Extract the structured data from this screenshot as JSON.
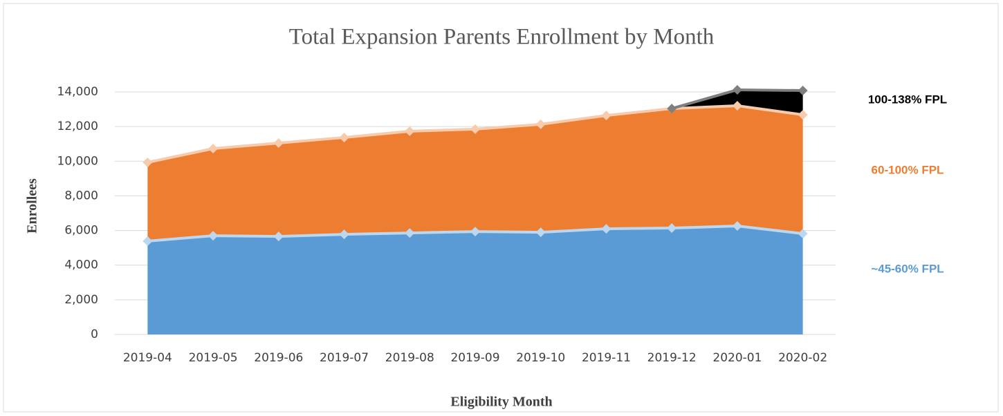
{
  "chart_data": {
    "type": "stacked_area",
    "title": "Total Expansion Parents Enrollment by Month",
    "x_label": "Eligibility Month",
    "y_label": "Enrollees",
    "categories": [
      "2019-04",
      "2019-05",
      "2019-06",
      "2019-07",
      "2019-08",
      "2019-09",
      "2019-10",
      "2019-11",
      "2019-12",
      "2020-01",
      "2020-02"
    ],
    "series": [
      {
        "name": "~45-60% FPL",
        "color": "#5b9bd5",
        "line_color": "#bdd7ee",
        "values": [
          5390,
          5700,
          5660,
          5780,
          5860,
          5940,
          5900,
          6100,
          6140,
          6260,
          5820
        ]
      },
      {
        "name": "60-100% FPL",
        "color": "#ed7d31",
        "line_color": "#f8cbad",
        "values": [
          4540,
          5030,
          5390,
          5590,
          5870,
          5910,
          6230,
          6540,
          6900,
          6940,
          6860
        ]
      },
      {
        "name": "100-138% FPL",
        "color": "#000000",
        "line_color": "#7f7f7f",
        "values": [
          null,
          null,
          null,
          null,
          null,
          null,
          null,
          null,
          0,
          920,
          1400
        ]
      }
    ],
    "ylim": [
      0,
      14000
    ],
    "yticks": [
      0,
      {
        "value": 2000,
        "label": "2,000"
      },
      {
        "value": 4000,
        "label": "4,000"
      },
      {
        "value": 6000,
        "label": "6,000"
      },
      {
        "value": 8000,
        "label": "8,000"
      },
      {
        "value": 10000,
        "label": "10,000"
      },
      {
        "value": 12000,
        "label": "12,000"
      },
      {
        "value": 14000,
        "label": "14,000"
      }
    ],
    "grid": true
  }
}
